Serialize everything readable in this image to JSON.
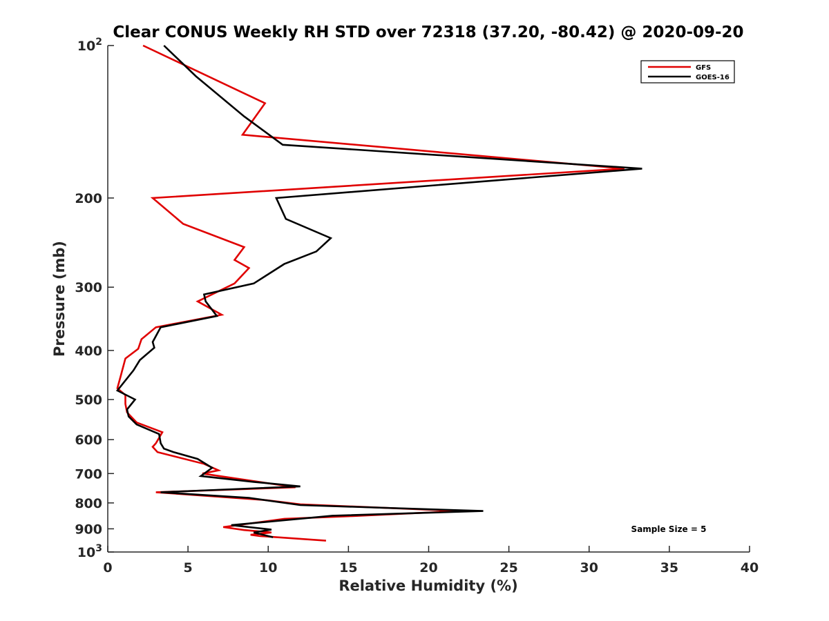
{
  "chart_data": {
    "type": "line",
    "title": "Clear CONUS Weekly RH STD over 72318 (37.20, -80.42) @ 2020-09-20",
    "xlabel": "Relative Humidity (%)",
    "ylabel": "Pressure (mb)",
    "xlim": [
      0,
      40
    ],
    "ylim": [
      100,
      1000
    ],
    "y_scale": "log",
    "y_reversed": true,
    "x_ticks": [
      0,
      5,
      10,
      15,
      20,
      25,
      30,
      35,
      40
    ],
    "x_tick_labels": [
      "0",
      "5",
      "10",
      "15",
      "20",
      "25",
      "30",
      "35",
      "40"
    ],
    "y_ticks": [
      100,
      200,
      300,
      400,
      500,
      600,
      700,
      800,
      900,
      1000
    ],
    "y_tick_labels": [
      {
        "base": "10",
        "sup": "2"
      },
      {
        "base": "200",
        "sup": ""
      },
      {
        "base": "300",
        "sup": ""
      },
      {
        "base": "400",
        "sup": ""
      },
      {
        "base": "500",
        "sup": ""
      },
      {
        "base": "600",
        "sup": ""
      },
      {
        "base": "700",
        "sup": ""
      },
      {
        "base": "800",
        "sup": ""
      },
      {
        "base": "900",
        "sup": ""
      },
      {
        "base": "10",
        "sup": "3"
      }
    ],
    "legend_position": "top-right",
    "annotation": "Sample Size = 5",
    "series": [
      {
        "name": "GFS",
        "color": "#e00000",
        "points": [
          [
            2.2,
            100
          ],
          [
            9.8,
            130
          ],
          [
            8.4,
            150
          ],
          [
            32.2,
            175
          ],
          [
            2.8,
            200
          ],
          [
            4.7,
            225
          ],
          [
            8.5,
            250
          ],
          [
            7.9,
            265
          ],
          [
            8.8,
            275
          ],
          [
            7.9,
            295
          ],
          [
            5.6,
            320
          ],
          [
            7.1,
            340
          ],
          [
            3.0,
            360
          ],
          [
            2.1,
            380
          ],
          [
            1.9,
            397
          ],
          [
            1.1,
            415
          ],
          [
            0.8,
            450
          ],
          [
            0.6,
            475
          ],
          [
            1.1,
            490
          ],
          [
            1.1,
            510
          ],
          [
            1.2,
            530
          ],
          [
            1.8,
            555
          ],
          [
            3.4,
            580
          ],
          [
            3.0,
            610
          ],
          [
            2.8,
            620
          ],
          [
            3.1,
            635
          ],
          [
            6.0,
            670
          ],
          [
            6.9,
            690
          ],
          [
            5.9,
            700
          ],
          [
            11.7,
            745
          ],
          [
            3.0,
            762
          ],
          [
            9.9,
            790
          ],
          [
            12.0,
            805
          ],
          [
            22.0,
            830
          ],
          [
            15.0,
            850
          ],
          [
            11.0,
            860
          ],
          [
            7.2,
            893
          ],
          [
            8.5,
            905
          ],
          [
            10.2,
            915
          ],
          [
            8.9,
            925
          ],
          [
            9.5,
            930
          ],
          [
            13.6,
            950
          ]
        ]
      },
      {
        "name": "GOES-16",
        "color": "#000000",
        "points": [
          [
            3.5,
            100
          ],
          [
            5.5,
            115
          ],
          [
            8.5,
            138
          ],
          [
            10.9,
            157
          ],
          [
            33.3,
            175
          ],
          [
            10.5,
            200
          ],
          [
            11.1,
            220
          ],
          [
            13.9,
            240
          ],
          [
            13.0,
            255
          ],
          [
            11.0,
            270
          ],
          [
            9.1,
            295
          ],
          [
            6.0,
            310
          ],
          [
            6.1,
            320
          ],
          [
            6.8,
            342
          ],
          [
            3.3,
            360
          ],
          [
            2.8,
            385
          ],
          [
            2.9,
            395
          ],
          [
            2.0,
            418
          ],
          [
            1.6,
            438
          ],
          [
            0.6,
            480
          ],
          [
            1.7,
            500
          ],
          [
            1.2,
            523
          ],
          [
            1.3,
            540
          ],
          [
            1.8,
            560
          ],
          [
            3.2,
            585
          ],
          [
            3.3,
            610
          ],
          [
            3.5,
            625
          ],
          [
            4.1,
            635
          ],
          [
            5.6,
            655
          ],
          [
            6.5,
            682
          ],
          [
            5.8,
            708
          ],
          [
            9.1,
            727
          ],
          [
            12.0,
            742
          ],
          [
            3.3,
            762
          ],
          [
            8.8,
            782
          ],
          [
            12.0,
            808
          ],
          [
            23.4,
            830
          ],
          [
            14.0,
            848
          ],
          [
            7.7,
            885
          ],
          [
            10.2,
            903
          ],
          [
            9.1,
            915
          ],
          [
            10.3,
            935
          ]
        ]
      }
    ]
  }
}
